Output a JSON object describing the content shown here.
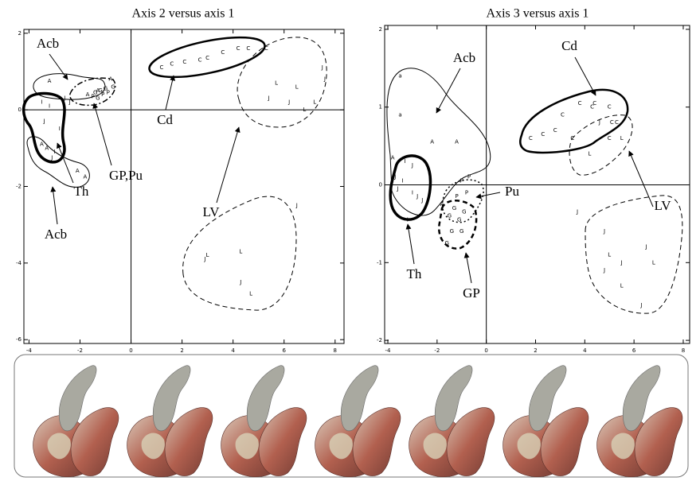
{
  "chart_data": [
    {
      "type": "scatter",
      "title": "Axis 2 versus axis 1",
      "xlim": [
        -4.2,
        8.35
      ],
      "ylim": [
        -6.1,
        2.1
      ],
      "xticks": [
        -4,
        -2,
        0,
        2,
        4,
        6,
        8
      ],
      "yticks": [
        -6,
        -4,
        -2,
        0,
        2
      ],
      "x": [
        -3.5,
        -3.2,
        -2.6,
        -3.4,
        -2.8,
        -3.0,
        -2.7,
        -2.4,
        -3.1,
        -3.2,
        -3.5,
        -3.3,
        -1.7,
        -1.3,
        -2.1,
        -1.8,
        -0.8,
        -1.4,
        -1.2,
        -1.0,
        -1.1,
        -0.9,
        -0.7,
        -1.5,
        -1.3,
        1.2,
        1.6,
        2.1,
        2.7,
        3.0,
        3.6,
        4.2,
        4.6,
        5.3,
        5.7,
        6.5,
        5.4,
        6.2,
        7.2,
        7.5,
        7.6,
        6.8,
        6.5,
        4.3,
        3.0,
        2.9,
        4.3,
        4.7
      ],
      "y": [
        0.2,
        0.1,
        0.3,
        -0.3,
        -0.5,
        -1.1,
        -1.2,
        0.2,
        -1.25,
        0.75,
        -0.9,
        -1.0,
        0.4,
        0.5,
        -1.6,
        -1.75,
        0.8,
        0.45,
        0.5,
        0.55,
        0.4,
        0.45,
        0.6,
        0.35,
        0.3,
        1.1,
        1.2,
        1.25,
        1.3,
        1.35,
        1.5,
        1.6,
        1.6,
        1.6,
        0.7,
        0.6,
        0.3,
        0.2,
        0.2,
        1.1,
        0.8,
        0.0,
        -2.5,
        -3.7,
        -3.8,
        -3.9,
        -4.5,
        -4.8
      ],
      "marker_labels": [
        "I",
        "I",
        "J",
        "J",
        "I",
        "I",
        "J",
        "J",
        "J",
        "A",
        "A",
        "A",
        "A",
        "A",
        "A",
        "A",
        "A",
        "G",
        "G",
        "G",
        "P",
        "P",
        "G",
        "P",
        "G",
        "C",
        "C",
        "C",
        "C",
        "C",
        "C",
        "C",
        "C",
        "C",
        "L",
        "L",
        "J",
        "J",
        "L",
        "J",
        "J",
        "L",
        "J",
        "L",
        "L",
        "J",
        "J",
        "L"
      ],
      "annotations": [
        "Acb",
        "Cd",
        "GP,Pu",
        "Th",
        "LV",
        "Acb"
      ]
    },
    {
      "type": "scatter",
      "title": "Axis 3 versus axis 1",
      "xlim": [
        -4.13,
        8.26
      ],
      "ylim": [
        -2.04,
        2.05
      ],
      "xticks": [
        -4,
        -2,
        0,
        2,
        4,
        6,
        8
      ],
      "yticks": [
        -2,
        -1,
        0,
        1,
        2
      ],
      "x": [
        -3.5,
        -3.5,
        -2.2,
        -1.2,
        -3.8,
        -1.8,
        -3.7,
        -3.3,
        -3.0,
        -3.4,
        -3.6,
        -3.0,
        -2.8,
        -3.2,
        -2.6,
        -1.5,
        -1.3,
        -1.1,
        -0.9,
        -1.4,
        -1.0,
        -1.6,
        -1.2,
        -0.8,
        -1.0,
        -0.7,
        1.8,
        2.3,
        2.8,
        3.1,
        3.8,
        4.3,
        4.4,
        5.0,
        5.1,
        5.0,
        5.3,
        3.5,
        4.6,
        4.2,
        5.5,
        3.7,
        4.8,
        6.5,
        5.0,
        5.5,
        6.8,
        4.8,
        5.5,
        6.3
      ],
      "y": [
        1.4,
        0.9,
        0.55,
        0.55,
        0.35,
        -0.25,
        0.1,
        0.3,
        0.25,
        0.05,
        -0.05,
        -0.1,
        -0.15,
        -0.45,
        -0.2,
        -0.4,
        -0.3,
        -0.45,
        -0.35,
        -0.6,
        -0.6,
        -0.75,
        -0.15,
        -0.1,
        0.05,
        0.1,
        0.6,
        0.65,
        0.7,
        0.9,
        1.05,
        1.0,
        1.05,
        1.0,
        0.8,
        0.6,
        0.8,
        0.6,
        0.8,
        0.4,
        0.6,
        -0.35,
        -0.6,
        -0.8,
        -0.9,
        -1.0,
        -1.0,
        -1.1,
        -1.3,
        -1.55
      ],
      "marker_labels": [
        "a",
        "a",
        "A",
        "A",
        "A",
        "A",
        "J",
        "I",
        "J",
        "I",
        "J",
        "I",
        "J",
        "I",
        "J",
        "G",
        "G",
        "G",
        "G",
        "G",
        "G",
        "G",
        "P",
        "P",
        "P",
        "P",
        "C",
        "C",
        "C",
        "C",
        "C",
        "C",
        "C",
        "C",
        "C",
        "C",
        "C",
        "C",
        "J",
        "L",
        "L",
        "J",
        "J",
        "J",
        "L",
        "J",
        "L",
        "J",
        "L",
        "J"
      ],
      "annotations": [
        "Acb",
        "Cd",
        "Pu",
        "LV",
        "Th",
        "GP"
      ]
    }
  ]
}
